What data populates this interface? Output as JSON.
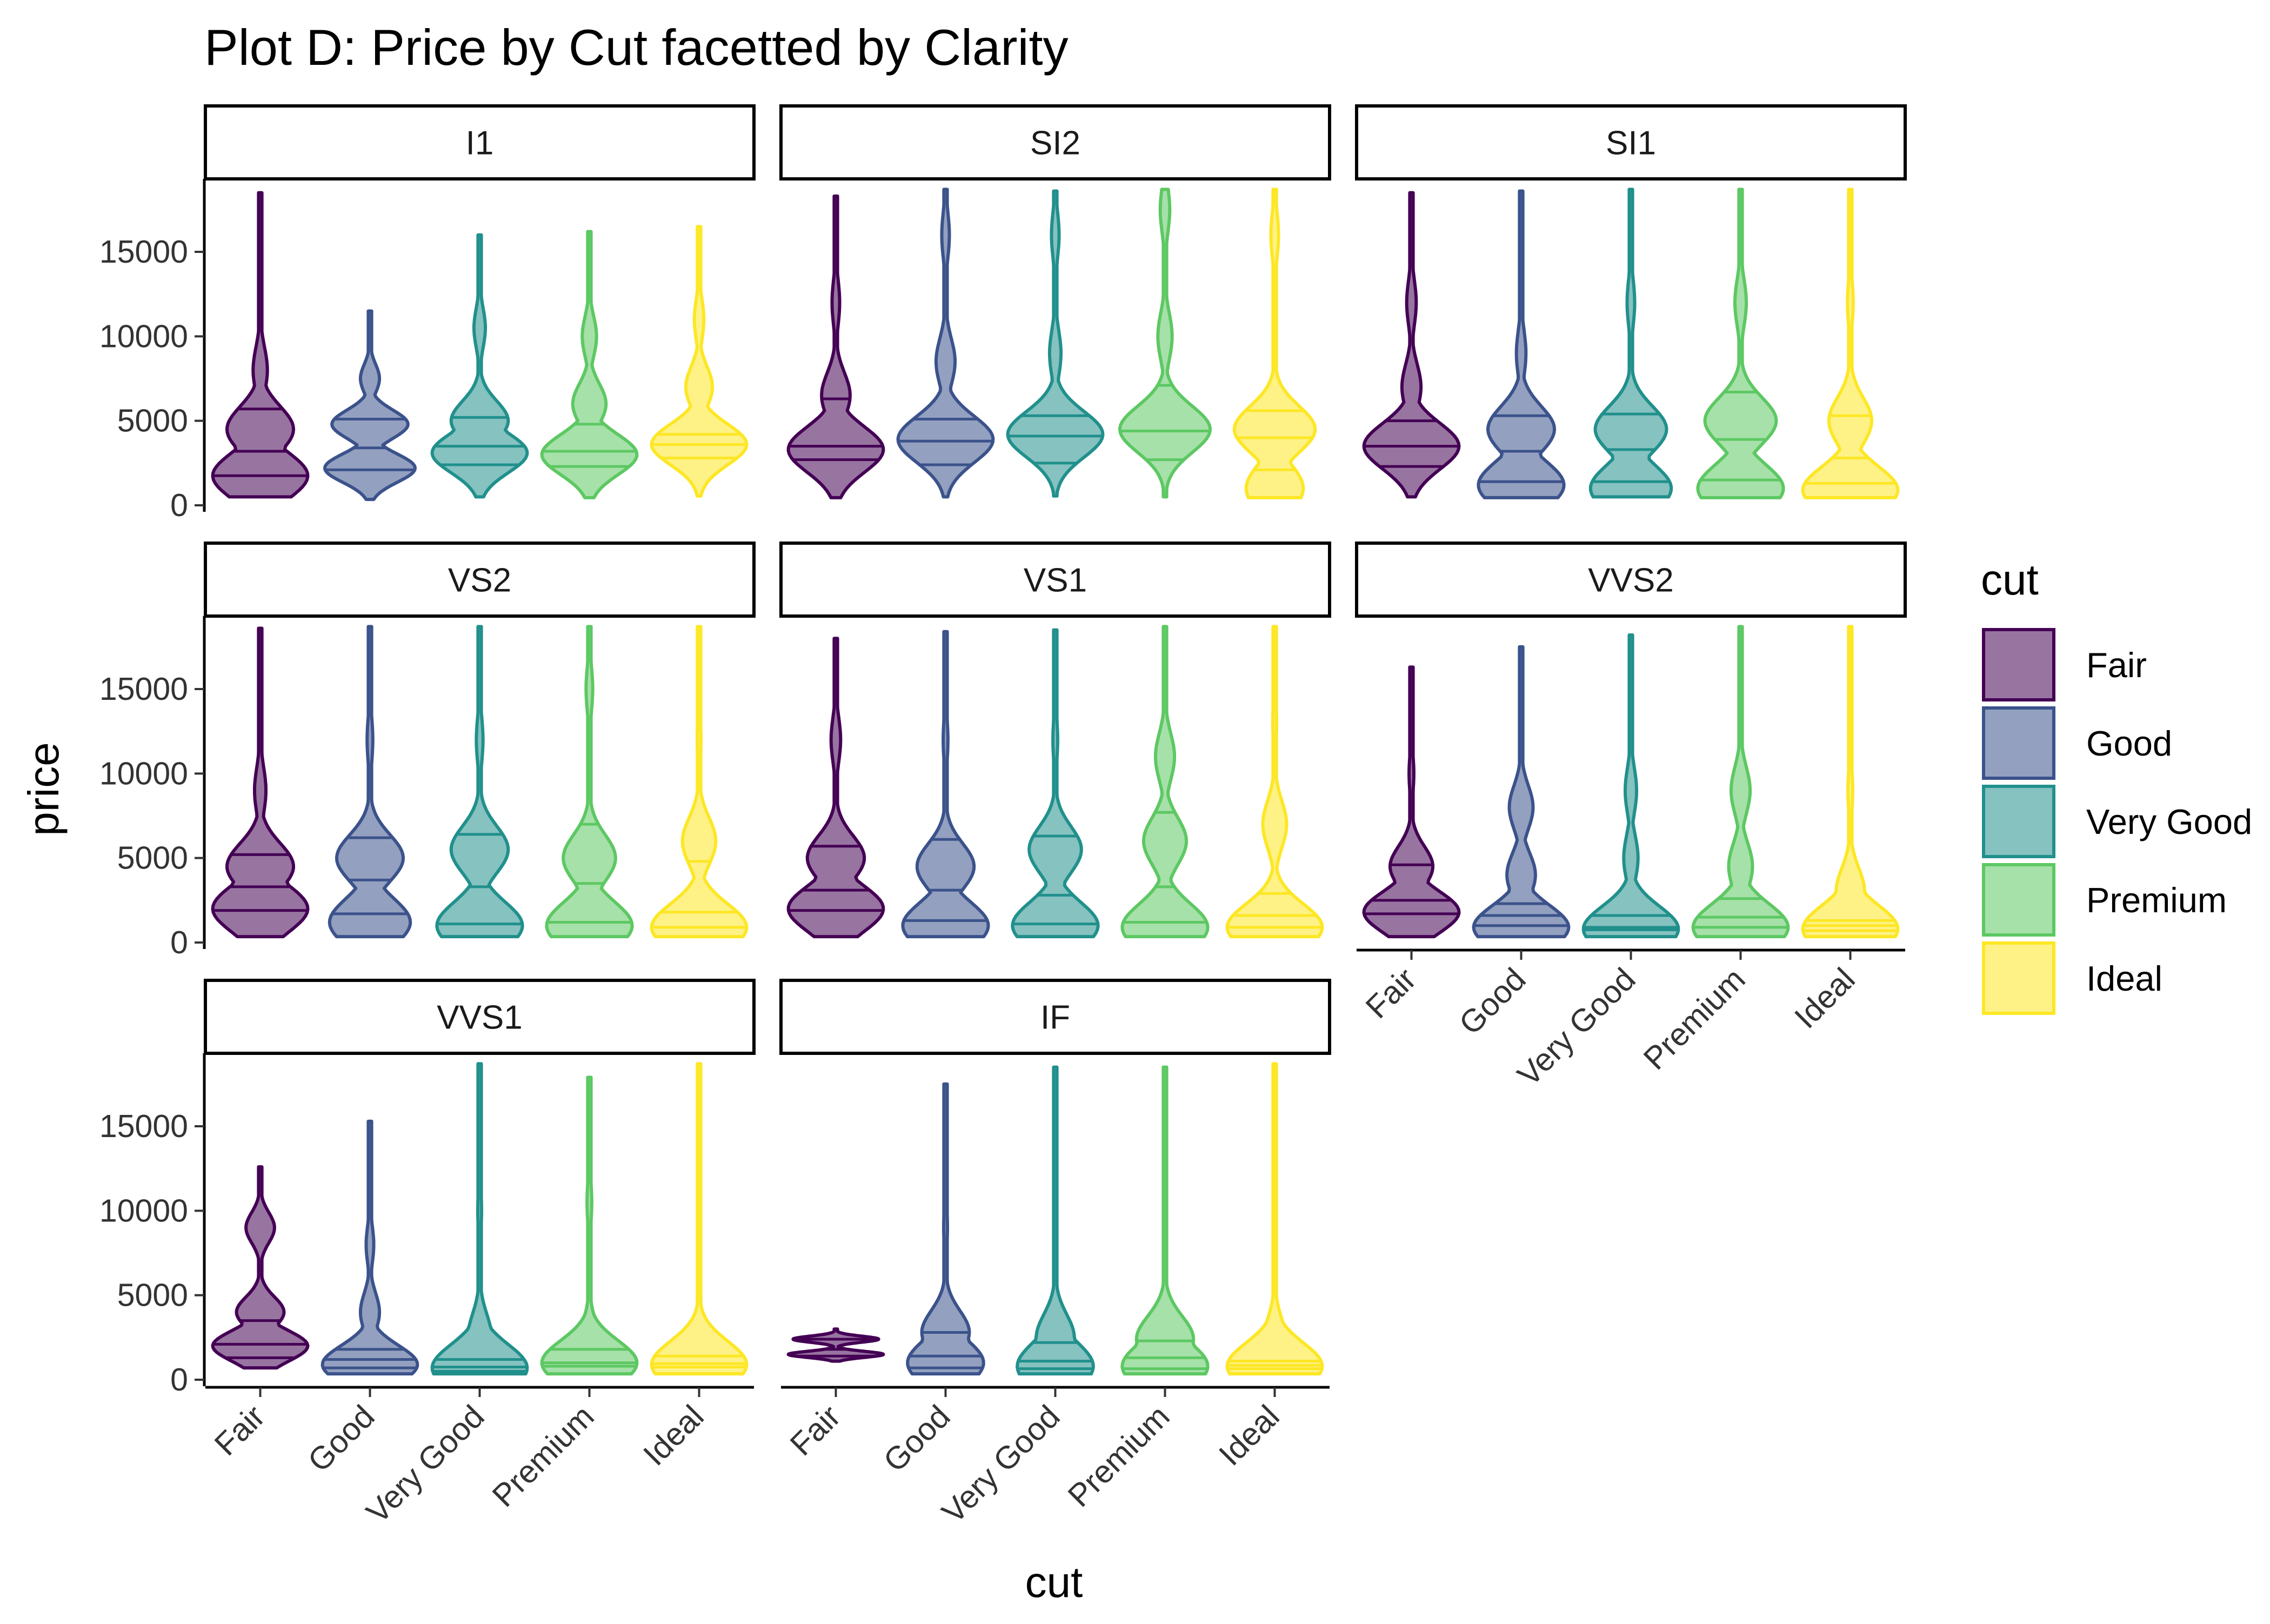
{
  "chart_data": {
    "type": "violin",
    "title": "Plot D: Price by Cut facetted by Clarity",
    "xlabel": "cut",
    "ylabel": "price",
    "ylim": [
      0,
      19000
    ],
    "yticks": [
      0,
      5000,
      10000,
      15000
    ],
    "categories": [
      "Fair",
      "Good",
      "Very Good",
      "Premium",
      "Ideal"
    ],
    "colors": [
      "#440154",
      "#3B528B",
      "#21908C",
      "#5DC863",
      "#FDE725"
    ],
    "fill_alpha": 0.55,
    "legend": {
      "title": "cut",
      "position": "right",
      "entries": [
        "Fair",
        "Good",
        "Very Good",
        "Premium",
        "Ideal"
      ]
    },
    "grid": false,
    "facets": [
      {
        "label": "I1",
        "violins": [
          {
            "min": 500,
            "max": 18500,
            "q": [
              1750,
              3200,
              5700
            ],
            "peaks": [
              [
                1750,
                1.0
              ],
              [
                4500,
                0.7
              ],
              [
                8000,
                0.15
              ]
            ]
          },
          {
            "min": 350,
            "max": 11500,
            "q": [
              2100,
              3400,
              5100
            ],
            "peaks": [
              [
                2200,
                0.95
              ],
              [
                4800,
                0.8
              ],
              [
                7500,
                0.2
              ]
            ]
          },
          {
            "min": 500,
            "max": 16000,
            "q": [
              2400,
              3500,
              5200
            ],
            "peaks": [
              [
                3100,
                1.0
              ],
              [
                5000,
                0.6
              ],
              [
                10500,
                0.12
              ]
            ]
          },
          {
            "min": 450,
            "max": 16200,
            "q": [
              2300,
              3200,
              4800
            ],
            "peaks": [
              [
                3000,
                1.0
              ],
              [
                6000,
                0.35
              ],
              [
                10000,
                0.15
              ]
            ]
          },
          {
            "min": 550,
            "max": 16500,
            "q": [
              2800,
              3600,
              4200
            ],
            "peaks": [
              [
                3600,
                1.0
              ],
              [
                7000,
                0.28
              ],
              [
                11000,
                0.1
              ]
            ]
          }
        ]
      },
      {
        "label": "SI2",
        "violins": [
          {
            "min": 450,
            "max": 18300,
            "q": [
              2700,
              3500,
              6300
            ],
            "peaks": [
              [
                3300,
                1.0
              ],
              [
                6500,
                0.3
              ],
              [
                12000,
                0.08
              ]
            ]
          },
          {
            "min": 500,
            "max": 18700,
            "q": [
              2400,
              3800,
              5100
            ],
            "peaks": [
              [
                3900,
                1.0
              ],
              [
                8500,
                0.2
              ],
              [
                16000,
                0.08
              ]
            ]
          },
          {
            "min": 550,
            "max": 18600,
            "q": [
              2500,
              4100,
              5300
            ],
            "peaks": [
              [
                4200,
                1.0
              ],
              [
                9000,
                0.12
              ],
              [
                16000,
                0.08
              ]
            ]
          },
          {
            "min": 500,
            "max": 18700,
            "q": [
              2700,
              4400,
              7100
            ],
            "peaks": [
              [
                4500,
                0.95
              ],
              [
                10000,
                0.15
              ],
              [
                17500,
                0.1
              ]
            ]
          },
          {
            "min": 450,
            "max": 18700,
            "q": [
              2100,
              4000,
              5600
            ],
            "peaks": [
              [
                1000,
                0.6
              ],
              [
                4500,
                0.85
              ],
              [
                16000,
                0.08
              ]
            ]
          }
        ]
      },
      {
        "label": "SI1",
        "violins": [
          {
            "min": 500,
            "max": 18500,
            "q": [
              2300,
              3500,
              5000
            ],
            "peaks": [
              [
                3500,
                1.0
              ],
              [
                7000,
                0.2
              ],
              [
                12000,
                0.1
              ]
            ]
          },
          {
            "min": 450,
            "max": 18600,
            "q": [
              1400,
              3200,
              5300
            ],
            "peaks": [
              [
                1200,
                0.9
              ],
              [
                4500,
                0.7
              ],
              [
                9000,
                0.1
              ]
            ]
          },
          {
            "min": 500,
            "max": 18700,
            "q": [
              1400,
              3300,
              5400
            ],
            "peaks": [
              [
                1000,
                0.85
              ],
              [
                4500,
                0.75
              ],
              [
                12000,
                0.08
              ]
            ]
          },
          {
            "min": 450,
            "max": 18700,
            "q": [
              1500,
              3900,
              6700
            ],
            "peaks": [
              [
                1000,
                0.9
              ],
              [
                5000,
                0.75
              ],
              [
                12000,
                0.12
              ]
            ]
          },
          {
            "min": 450,
            "max": 18700,
            "q": [
              1300,
              2800,
              5300
            ],
            "peaks": [
              [
                900,
                1.0
              ],
              [
                5000,
                0.45
              ],
              [
                12000,
                0.06
              ]
            ]
          }
        ]
      },
      {
        "label": "VS2",
        "violins": [
          {
            "min": 350,
            "max": 18600,
            "q": [
              1900,
              3300,
              5200
            ],
            "peaks": [
              [
                2000,
                1.0
              ],
              [
                4500,
                0.7
              ],
              [
                9000,
                0.12
              ]
            ]
          },
          {
            "min": 350,
            "max": 18700,
            "q": [
              1700,
              3700,
              6200
            ],
            "peaks": [
              [
                1200,
                0.85
              ],
              [
                5000,
                0.7
              ],
              [
                12000,
                0.06
              ]
            ]
          },
          {
            "min": 350,
            "max": 18700,
            "q": [
              1100,
              3300,
              6400
            ],
            "peaks": [
              [
                1000,
                0.9
              ],
              [
                5500,
                0.6
              ],
              [
                12000,
                0.07
              ]
            ]
          },
          {
            "min": 350,
            "max": 18700,
            "q": [
              1200,
              3500,
              7000
            ],
            "peaks": [
              [
                1000,
                0.9
              ],
              [
                5000,
                0.55
              ],
              [
                15000,
                0.07
              ]
            ]
          },
          {
            "min": 350,
            "max": 18700,
            "q": [
              900,
              1800,
              4800
            ],
            "peaks": [
              [
                900,
                1.0
              ],
              [
                6000,
                0.35
              ],
              [
                12000,
                0.04
              ]
            ]
          }
        ]
      },
      {
        "label": "VS1",
        "violins": [
          {
            "min": 350,
            "max": 18000,
            "q": [
              1900,
              3100,
              5700
            ],
            "peaks": [
              [
                2000,
                1.0
              ],
              [
                5000,
                0.6
              ],
              [
                12000,
                0.1
              ]
            ]
          },
          {
            "min": 350,
            "max": 18400,
            "q": [
              1300,
              3100,
              6100
            ],
            "peaks": [
              [
                1000,
                0.9
              ],
              [
                4500,
                0.6
              ],
              [
                12000,
                0.05
              ]
            ]
          },
          {
            "min": 350,
            "max": 18500,
            "q": [
              1100,
              2800,
              6300
            ],
            "peaks": [
              [
                1000,
                0.9
              ],
              [
                5500,
                0.55
              ],
              [
                12000,
                0.05
              ]
            ]
          },
          {
            "min": 350,
            "max": 18700,
            "q": [
              1200,
              3300,
              7700
            ],
            "peaks": [
              [
                900,
                0.9
              ],
              [
                6000,
                0.45
              ],
              [
                11000,
                0.2
              ]
            ]
          },
          {
            "min": 350,
            "max": 18700,
            "q": [
              900,
              1600,
              2900
            ],
            "peaks": [
              [
                900,
                1.0
              ],
              [
                7000,
                0.25
              ],
              [
                13000,
                0.04
              ]
            ]
          }
        ]
      },
      {
        "label": "VVS2",
        "violins": [
          {
            "min": 350,
            "max": 16300,
            "q": [
              1700,
              2500,
              4600
            ],
            "peaks": [
              [
                1800,
                1.0
              ],
              [
                4500,
                0.45
              ],
              [
                10000,
                0.05
              ]
            ]
          },
          {
            "min": 350,
            "max": 17500,
            "q": [
              1000,
              1600,
              2300
            ],
            "peaks": [
              [
                900,
                1.0
              ],
              [
                4000,
                0.3
              ],
              [
                8000,
                0.25
              ]
            ]
          },
          {
            "min": 350,
            "max": 18200,
            "q": [
              750,
              900,
              1600
            ],
            "peaks": [
              [
                800,
                1.0
              ],
              [
                5000,
                0.15
              ],
              [
                9000,
                0.12
              ]
            ]
          },
          {
            "min": 350,
            "max": 18700,
            "q": [
              900,
              1500,
              2600
            ],
            "peaks": [
              [
                900,
                1.0
              ],
              [
                4500,
                0.25
              ],
              [
                9000,
                0.2
              ]
            ]
          },
          {
            "min": 350,
            "max": 18700,
            "q": [
              700,
              1000,
              1300
            ],
            "peaks": [
              [
                800,
                1.0
              ],
              [
                3000,
                0.3
              ],
              [
                9000,
                0.05
              ]
            ]
          }
        ]
      },
      {
        "label": "VVS1",
        "violins": [
          {
            "min": 700,
            "max": 12600,
            "q": [
              1300,
              2100,
              3500
            ],
            "peaks": [
              [
                2000,
                1.0
              ],
              [
                4000,
                0.5
              ],
              [
                9000,
                0.3
              ]
            ]
          },
          {
            "min": 350,
            "max": 15300,
            "q": [
              700,
              1200,
              1800
            ],
            "peaks": [
              [
                900,
                1.0
              ],
              [
                4000,
                0.2
              ],
              [
                8000,
                0.08
              ]
            ]
          },
          {
            "min": 350,
            "max": 18700,
            "q": [
              500,
              750,
              1200
            ],
            "peaks": [
              [
                700,
                1.0
              ],
              [
                2500,
                0.25
              ],
              [
                10000,
                0.04
              ]
            ]
          },
          {
            "min": 350,
            "max": 17900,
            "q": [
              800,
              1000,
              1800
            ],
            "peaks": [
              [
                1000,
                1.0
              ],
              [
                2200,
                0.2
              ],
              [
                10500,
                0.05
              ]
            ]
          },
          {
            "min": 350,
            "max": 18700,
            "q": [
              750,
              950,
              1400
            ],
            "peaks": [
              [
                900,
                1.0
              ],
              [
                2000,
                0.2
              ],
              [
                10000,
                0.03
              ]
            ]
          }
        ]
      },
      {
        "label": "IF",
        "violins": [
          {
            "min": 1100,
            "max": 3000,
            "q": [
              1400,
              1800,
              2400
            ],
            "peaks": [
              [
                1500,
                1.0
              ],
              [
                2400,
                0.9
              ]
            ]
          },
          {
            "min": 350,
            "max": 17500,
            "q": [
              700,
              1400,
              2800
            ],
            "peaks": [
              [
                1000,
                0.8
              ],
              [
                2800,
                0.5
              ],
              [
                9000,
                0.04
              ]
            ]
          },
          {
            "min": 350,
            "max": 18500,
            "q": [
              650,
              1100,
              2200
            ],
            "peaks": [
              [
                800,
                0.8
              ],
              [
                2500,
                0.4
              ],
              [
                10000,
                0.03
              ]
            ]
          },
          {
            "min": 350,
            "max": 18500,
            "q": [
              650,
              1300,
              2300
            ],
            "peaks": [
              [
                800,
                0.9
              ],
              [
                2400,
                0.6
              ],
              [
                10000,
                0.03
              ]
            ]
          },
          {
            "min": 350,
            "max": 18700,
            "q": [
              650,
              850,
              1100
            ],
            "peaks": [
              [
                800,
                1.0
              ],
              [
                2200,
                0.25
              ],
              [
                10000,
                0.02
              ]
            ]
          }
        ]
      }
    ]
  }
}
